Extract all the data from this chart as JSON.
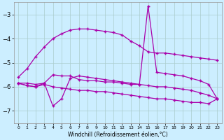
{
  "color": "#aa00aa",
  "bg_color": "#cceeff",
  "grid_color": "#aacccc",
  "xlabel": "Windchill (Refroidissement éolien,°C)",
  "ylim": [
    -7.5,
    -2.5
  ],
  "xlim": [
    -0.5,
    23.5
  ],
  "yticks": [
    -7,
    -6,
    -5,
    -4,
    -3
  ],
  "xticks": [
    0,
    1,
    2,
    3,
    4,
    5,
    6,
    7,
    8,
    9,
    10,
    11,
    12,
    13,
    14,
    15,
    16,
    17,
    18,
    19,
    20,
    21,
    22,
    23
  ],
  "s1_y": [
    -5.6,
    -5.25,
    -4.75,
    -4.35,
    -4.0,
    -3.8,
    -3.65,
    -3.6,
    -3.6,
    -3.65,
    -3.7,
    -3.75,
    -3.85,
    -4.1,
    -4.3,
    -4.55,
    -4.6,
    -4.6,
    -4.65,
    -4.7,
    -4.75,
    -4.8,
    -4.85,
    -4.9
  ],
  "s2_y": [
    -5.85,
    -5.85,
    -5.9,
    -5.85,
    -5.5,
    -5.55,
    -5.55,
    -5.7,
    -5.75,
    -5.75,
    -5.8,
    -5.8,
    -5.85,
    -5.9,
    -5.9,
    -2.65,
    -5.4,
    -5.45,
    -5.5,
    -5.55,
    -5.65,
    -5.75,
    -5.9,
    -6.5
  ],
  "s3_y": [
    -5.85,
    -5.95,
    -6.0,
    -5.85,
    -6.8,
    -6.5,
    -5.65,
    -5.55,
    -5.6,
    -5.65,
    -5.7,
    -5.75,
    -5.8,
    -5.85,
    -5.9,
    -5.95,
    -6.0,
    -6.0,
    -6.05,
    -6.1,
    -6.15,
    -6.25,
    -6.35,
    -6.5
  ],
  "s4_y": [
    -5.85,
    -5.95,
    -6.0,
    -5.9,
    -6.0,
    -6.05,
    -6.1,
    -6.15,
    -6.15,
    -6.2,
    -6.2,
    -6.25,
    -6.3,
    -6.35,
    -6.4,
    -6.45,
    -6.5,
    -6.5,
    -6.55,
    -6.6,
    -6.65,
    -6.65,
    -6.7,
    -6.5
  ]
}
